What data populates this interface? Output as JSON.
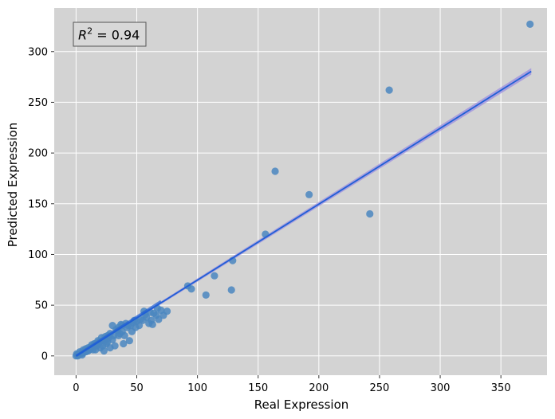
{
  "chart_data": {
    "type": "scatter",
    "xlabel": "Real Expression",
    "ylabel": "Predicted Expression",
    "xlim": [
      -18,
      388
    ],
    "ylim": [
      -19,
      343
    ],
    "xticks": [
      0,
      50,
      100,
      150,
      200,
      250,
      300,
      350
    ],
    "yticks": [
      0,
      50,
      100,
      150,
      200,
      250,
      300
    ],
    "grid": true,
    "background": "#d3d3d3",
    "point_color": "#4a86c0",
    "fit_color": "#1f5fd6",
    "ci_color": "#9b8ee0",
    "annotation": {
      "prefix": "R",
      "sup": "2",
      "value": " = 0.94",
      "placement": "top-left"
    },
    "fit_line": {
      "x": [
        0,
        375
      ],
      "y": [
        0,
        280.5
      ]
    },
    "points": [
      [
        374,
        327
      ],
      [
        258,
        262
      ],
      [
        164,
        182
      ],
      [
        192,
        159
      ],
      [
        242,
        140
      ],
      [
        156,
        120
      ],
      [
        129,
        94
      ],
      [
        114,
        79
      ],
      [
        92,
        69
      ],
      [
        95,
        66
      ],
      [
        107,
        60
      ],
      [
        128,
        65
      ],
      [
        75,
        44
      ],
      [
        72,
        40
      ],
      [
        70,
        45
      ],
      [
        66,
        40
      ],
      [
        64,
        42
      ],
      [
        62,
        35
      ],
      [
        60,
        32
      ],
      [
        58,
        38
      ],
      [
        56,
        44
      ],
      [
        55,
        35
      ],
      [
        52,
        30
      ],
      [
        50,
        34
      ],
      [
        48,
        35
      ],
      [
        46,
        24
      ],
      [
        45,
        30
      ],
      [
        44,
        15
      ],
      [
        42,
        28
      ],
      [
        40,
        20
      ],
      [
        39,
        12
      ],
      [
        38,
        30
      ],
      [
        37,
        31
      ],
      [
        36,
        22
      ],
      [
        35,
        20
      ],
      [
        34,
        25
      ],
      [
        32,
        10
      ],
      [
        31,
        20
      ],
      [
        30,
        30
      ],
      [
        28,
        8
      ],
      [
        27,
        18
      ],
      [
        26,
        20
      ],
      [
        25,
        12
      ],
      [
        24,
        16
      ],
      [
        23,
        5
      ],
      [
        22,
        15
      ],
      [
        21,
        18
      ],
      [
        20,
        8
      ],
      [
        19,
        14
      ],
      [
        18,
        12
      ],
      [
        17,
        10
      ],
      [
        16,
        6
      ],
      [
        15,
        12
      ],
      [
        14,
        9
      ],
      [
        13,
        11
      ],
      [
        12,
        7
      ],
      [
        11,
        6
      ],
      [
        10,
        8
      ],
      [
        9,
        5
      ],
      [
        8,
        7
      ],
      [
        7,
        4
      ],
      [
        6,
        3
      ],
      [
        5,
        4
      ],
      [
        4,
        2
      ],
      [
        3,
        2
      ],
      [
        2,
        1
      ],
      [
        1,
        1
      ],
      [
        0,
        0
      ],
      [
        0.5,
        2
      ],
      [
        1.5,
        0
      ],
      [
        3,
        4
      ],
      [
        5,
        1
      ],
      [
        6,
        6
      ],
      [
        8,
        4
      ],
      [
        10,
        5
      ],
      [
        12,
        9
      ],
      [
        14,
        6
      ],
      [
        16,
        12
      ],
      [
        18,
        15
      ],
      [
        20,
        14
      ],
      [
        22,
        10
      ],
      [
        24,
        19
      ],
      [
        26,
        14
      ],
      [
        28,
        22
      ],
      [
        30,
        16
      ],
      [
        33,
        26
      ],
      [
        35,
        28
      ],
      [
        38,
        24
      ],
      [
        41,
        32
      ],
      [
        43,
        30
      ],
      [
        47,
        33
      ],
      [
        49,
        28
      ],
      [
        53,
        36
      ],
      [
        57,
        41
      ],
      [
        61,
        43
      ],
      [
        63,
        31
      ],
      [
        67,
        47
      ],
      [
        68,
        36
      ]
    ]
  }
}
